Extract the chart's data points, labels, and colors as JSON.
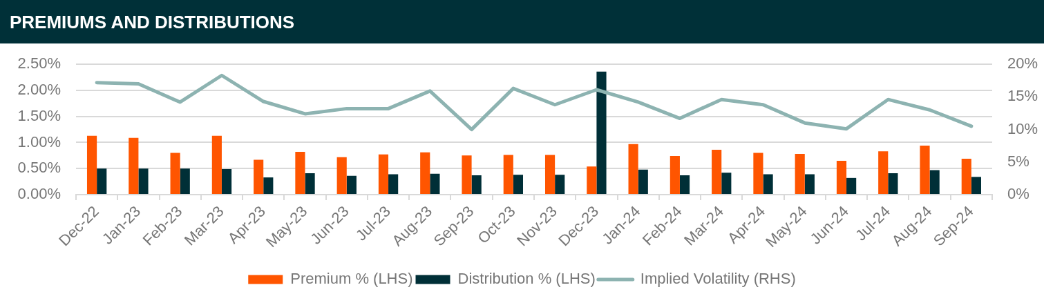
{
  "chart_data": {
    "type": "bar",
    "title": "PREMIUMS AND DISTRIBUTIONS",
    "categories": [
      "Dec-22",
      "Jan-23",
      "Feb-23",
      "Mar-23",
      "Apr-23",
      "May-23",
      "Jun-23",
      "Jul-23",
      "Aug-23",
      "Sep-23",
      "Oct-23",
      "Nov-23",
      "Dec-23",
      "Jan-24",
      "Feb-24",
      "Mar-24",
      "Apr-24",
      "May-24",
      "Jun-24",
      "Jul-24",
      "Aug-24",
      "Sep-24"
    ],
    "series": [
      {
        "name": "Premium % (LHS)",
        "color": "#ff5500",
        "values": [
          1.13,
          1.09,
          0.8,
          1.13,
          0.67,
          0.82,
          0.72,
          0.77,
          0.81,
          0.75,
          0.76,
          0.76,
          0.54,
          0.97,
          0.74,
          0.86,
          0.8,
          0.78,
          0.65,
          0.83,
          0.94,
          0.69
        ]
      },
      {
        "name": "Distribution % (LHS)",
        "color": "#002f37",
        "values": [
          0.5,
          0.5,
          0.5,
          0.49,
          0.33,
          0.41,
          0.36,
          0.39,
          0.4,
          0.37,
          0.38,
          0.38,
          2.36,
          0.48,
          0.37,
          0.42,
          0.39,
          0.39,
          0.32,
          0.41,
          0.47,
          0.34
        ]
      },
      {
        "name": "Implied Volatility (RHS)",
        "type": "line",
        "axis": "y2",
        "color": "#8db3b1",
        "values": [
          17.2,
          17.0,
          14.2,
          18.3,
          14.3,
          12.4,
          13.2,
          13.2,
          15.9,
          10.0,
          16.3,
          13.8,
          16.1,
          14.2,
          11.7,
          14.6,
          13.8,
          11.0,
          10.1,
          14.6,
          13.0,
          10.5
        ]
      }
    ],
    "ylim": [
      0,
      2.5
    ],
    "yticks": [
      {
        "value": 0,
        "label": "0.00%"
      },
      {
        "value": 0.5,
        "label": "0.50%"
      },
      {
        "value": 1,
        "label": "1.00%"
      },
      {
        "value": 1.5,
        "label": "1.50%"
      },
      {
        "value": 2,
        "label": "2.00%"
      },
      {
        "value": 2.5,
        "label": "2.50%"
      }
    ],
    "y2lim": [
      0,
      20
    ],
    "y2ticks": [
      {
        "value": 0,
        "label": "0%"
      },
      {
        "value": 5,
        "label": "5%"
      },
      {
        "value": 10,
        "label": "10%"
      },
      {
        "value": 15,
        "label": "15%"
      },
      {
        "value": 20,
        "label": "20%"
      }
    ],
    "grid": "y",
    "legend": "bottom",
    "marker": "none",
    "line_style": "solid"
  }
}
